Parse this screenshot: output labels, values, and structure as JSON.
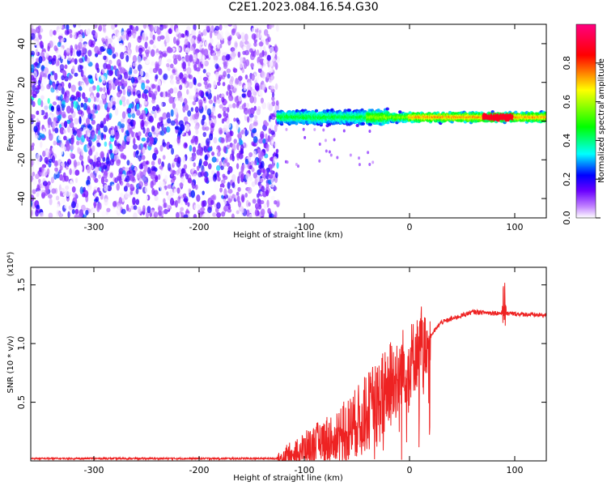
{
  "title": "C2E1.2023.084.16.54.G30",
  "chart_data": [
    {
      "type": "heatmap",
      "xlabel": "Height of straight line (km)",
      "ylabel": "Frequency (Hz)",
      "xlim": [
        -360,
        130
      ],
      "ylim": [
        -50,
        50
      ],
      "xticks": [
        -300,
        -200,
        -100,
        0,
        100
      ],
      "yticks": [
        -40,
        -20,
        0,
        20,
        40
      ],
      "noise_region_x": [
        -360,
        -125
      ],
      "signal_band": {
        "x": [
          -125,
          130
        ],
        "center_hz": 2
      },
      "colorbar": {
        "label": "Normalized spectral amplitude",
        "range": [
          0,
          1
        ],
        "ticks": [
          0.0,
          0.2,
          0.4,
          0.6,
          0.8
        ],
        "colors": [
          "#ffffff",
          "#c080ff",
          "#6a00ff",
          "#0000ff",
          "#00ffff",
          "#00ff00",
          "#ffff00",
          "#ff0000",
          "#ff0080"
        ]
      }
    },
    {
      "type": "line",
      "xlabel": "Height of straight line (km)",
      "ylabel": "SNR (10 * v/v)",
      "multiplier": "(x10⁴)",
      "xlim": [
        -360,
        130
      ],
      "ylim": [
        0,
        1.65
      ],
      "xticks": [
        -300,
        -200,
        -100,
        0,
        100
      ],
      "yticks": [
        0.5,
        1.0,
        1.5
      ],
      "ytick_labels": [
        "0.5",
        "1.0",
        "1.5"
      ],
      "color": "#ee2222",
      "profile": [
        {
          "x": -360,
          "y": 0.02
        },
        {
          "x": -125,
          "y": 0.02
        },
        {
          "x": -100,
          "y": 0.1
        },
        {
          "x": -60,
          "y": 0.25
        },
        {
          "x": -30,
          "y": 0.5
        },
        {
          "x": -10,
          "y": 0.75
        },
        {
          "x": 10,
          "y": 0.95
        },
        {
          "x": 30,
          "y": 1.18
        },
        {
          "x": 60,
          "y": 1.27
        },
        {
          "x": 130,
          "y": 1.24
        }
      ]
    }
  ]
}
